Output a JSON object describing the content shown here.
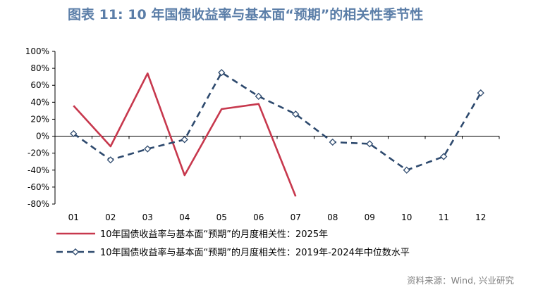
{
  "title": "图表 11: 10 年国债收益率与基本面“预期”的相关性季节性",
  "source": "资料来源：Wind, 兴业研究",
  "colors": {
    "title": "#5b7ea8",
    "series_2025": "#c7384d",
    "series_median": "#2e4a6e",
    "marker_fill": "#ffffff"
  },
  "chart_data": {
    "type": "line",
    "categories": [
      "01",
      "02",
      "03",
      "04",
      "05",
      "06",
      "07",
      "08",
      "09",
      "10",
      "11",
      "12"
    ],
    "ylim": [
      -80,
      100
    ],
    "yticks": [
      100,
      80,
      60,
      40,
      20,
      0,
      -20,
      -40,
      -60,
      -80
    ],
    "ytick_labels": [
      "100%",
      "80%",
      "60%",
      "40%",
      "20%",
      "0%",
      "-20%",
      "-40%",
      "-60%",
      "-80%"
    ],
    "y_unit": "%",
    "grid": false,
    "legend_position": "bottom",
    "series": [
      {
        "name": "10年国债收益率与基本面“预期”的月度相关性：2025年",
        "style": "solid",
        "marker": "none",
        "values": [
          36,
          -12,
          74,
          -46,
          32,
          38,
          -71,
          null,
          null,
          null,
          null,
          null
        ]
      },
      {
        "name": "10年国债收益率与基本面“预期”的月度相关性：2019年-2024年中位数水平",
        "style": "dashed",
        "marker": "diamond",
        "values": [
          3,
          -28,
          -15,
          -4,
          75,
          47,
          26,
          -7,
          -9,
          -40,
          -24,
          51
        ]
      }
    ]
  }
}
